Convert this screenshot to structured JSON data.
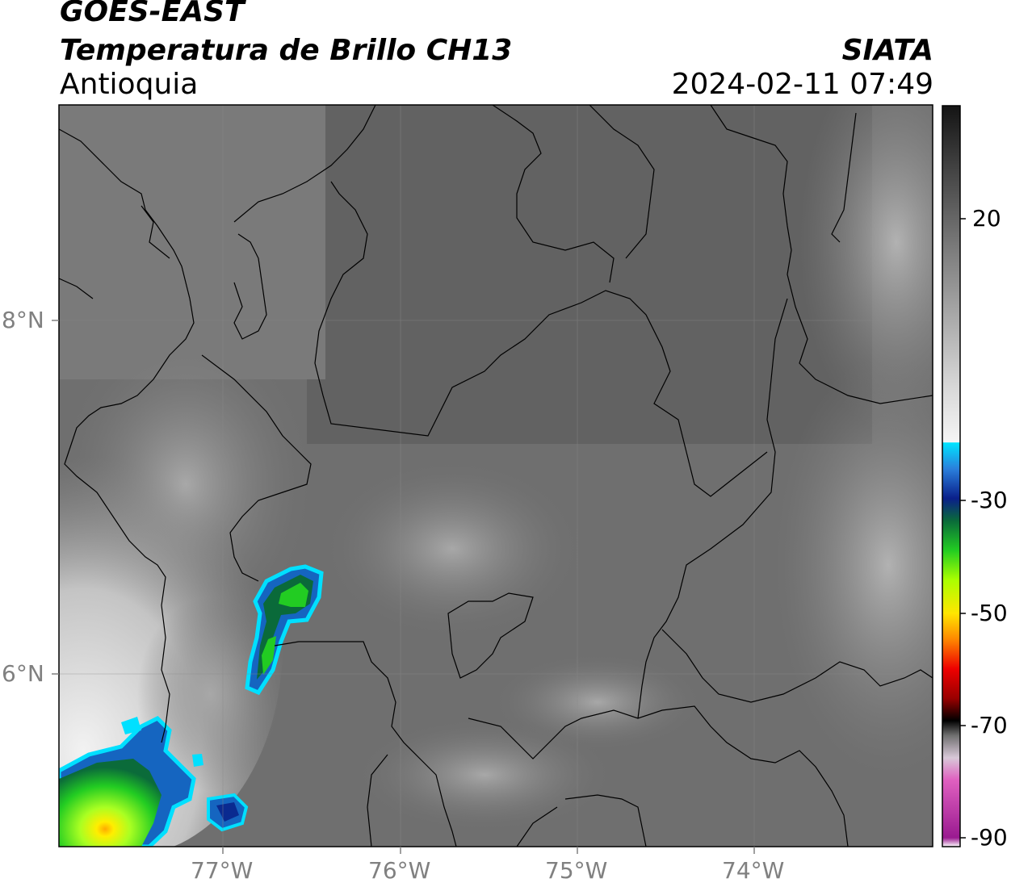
{
  "header": {
    "line1": "GOES-EAST",
    "line2": "Temperatura de Brillo CH13",
    "line3": "Antioquia",
    "org": "SIATA",
    "datetime": "2024-02-11 07:49"
  },
  "map": {
    "lon_ticks": [
      "77°W",
      "76°W",
      "75°W",
      "74°W"
    ],
    "lat_ticks": [
      "8°N",
      "6°N"
    ],
    "lon_range": [
      -77.93,
      -73.0
    ],
    "lat_range": [
      5.05,
      9.25
    ]
  },
  "colorbar": {
    "ticks": [
      "20",
      "-30",
      "-50",
      "-70",
      "-90"
    ],
    "colors": {
      "warm_dark": "#141414",
      "gray_mid": "#7f7f7f",
      "light": "#f5f5f5",
      "cyan": "#00e4ff",
      "blue": "#0a1f8a",
      "green": "#22cc22",
      "yellow": "#ffe600",
      "orange": "#ff8800",
      "red": "#ee0000",
      "black": "#000000",
      "pink": "#e060c0",
      "purple": "#9a1a90"
    }
  }
}
